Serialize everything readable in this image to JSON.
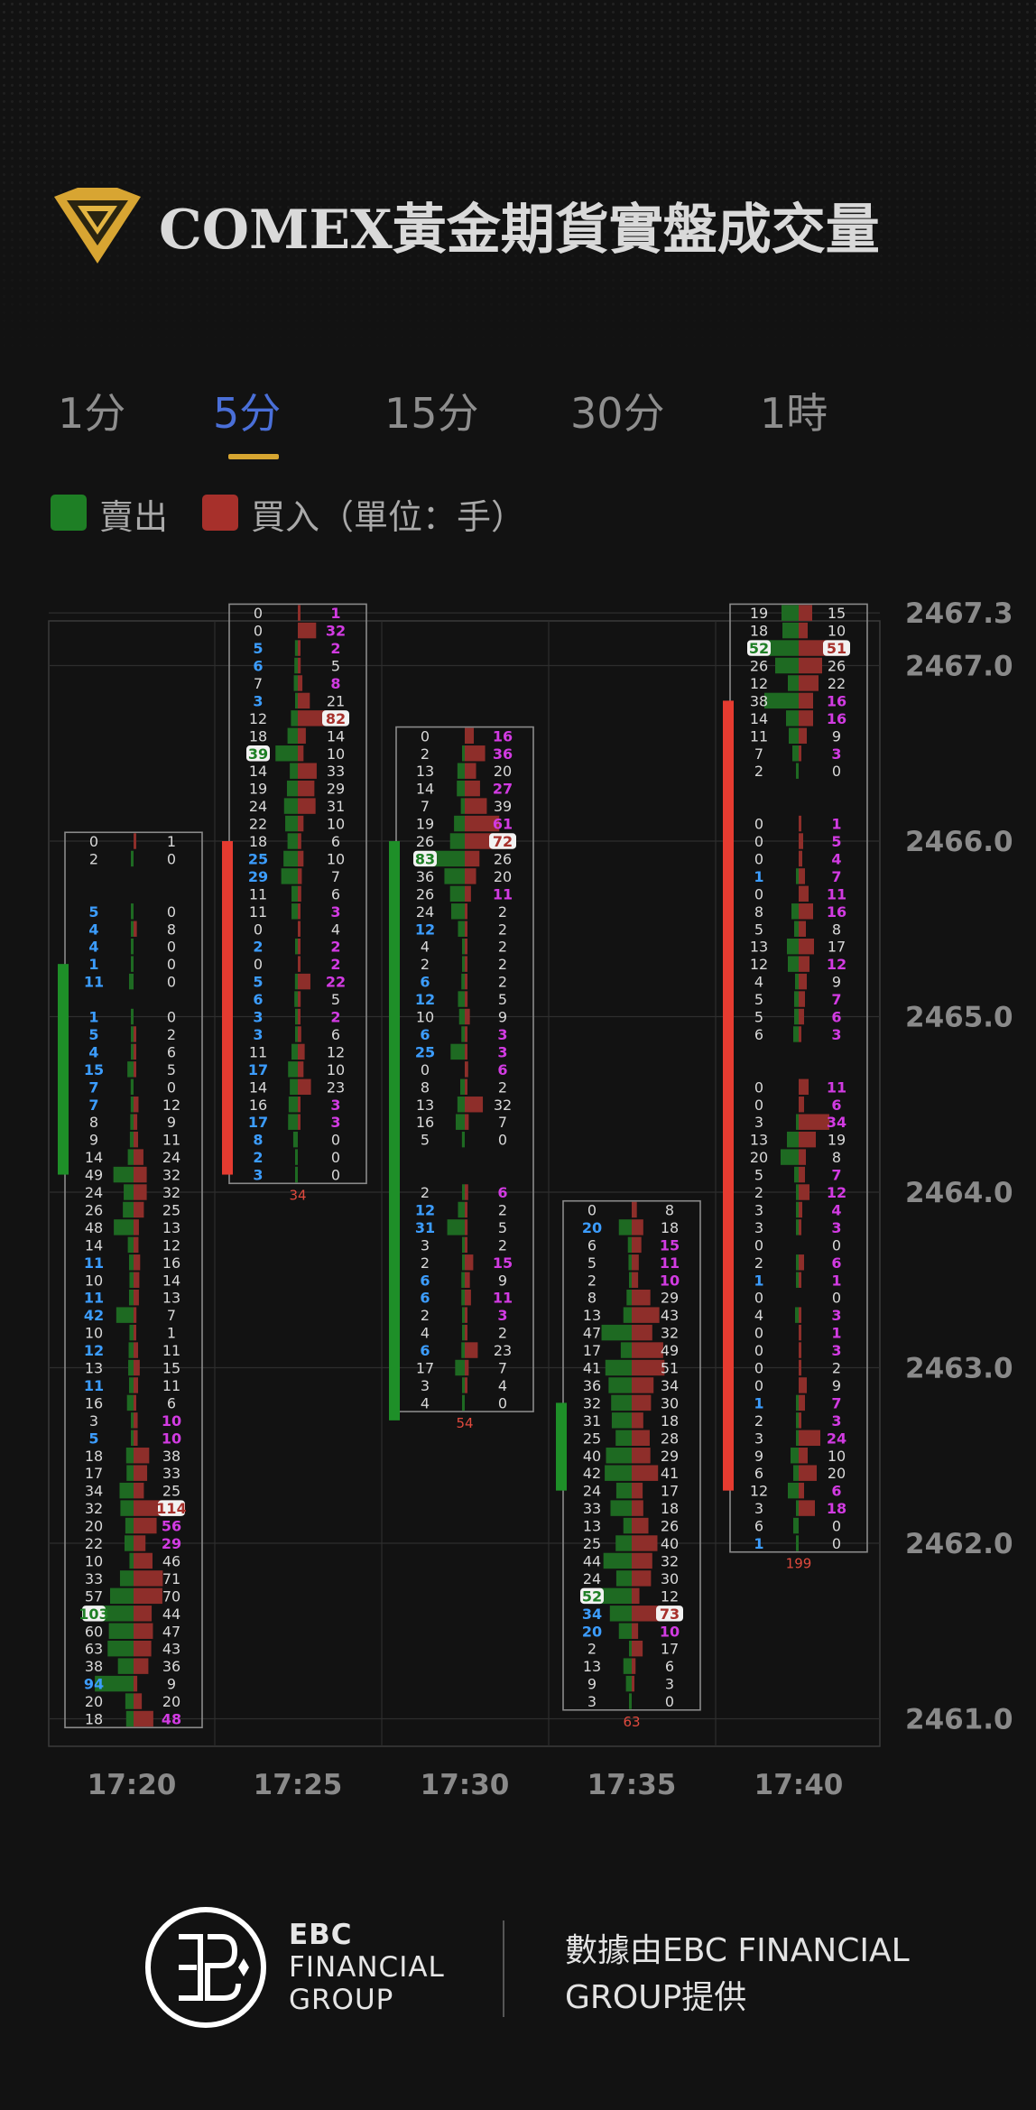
{
  "title": "COMEX黃金期貨實盤成交量",
  "tabs": [
    {
      "label": "1分",
      "active": false
    },
    {
      "label": "5分",
      "active": true
    },
    {
      "label": "15分",
      "active": false
    },
    {
      "label": "30分",
      "active": false
    },
    {
      "label": "1時",
      "active": false
    }
  ],
  "legend": {
    "sell_label": "賣出",
    "buy_label": "買入（單位：手）",
    "sell_color": "#1e7f25",
    "buy_color": "#a7302b"
  },
  "colors": {
    "candle_up": "#e53b30",
    "candle_down": "#1e8f28",
    "sell_bar": "#1e6a22",
    "buy_bar": "#8e2e2a",
    "accent_tab": "#4a6fd8",
    "tab_underline": "#d6a531"
  },
  "chart_data": {
    "type": "footprint",
    "price_axis": [
      "2467.3",
      "2467.0",
      "2466.0",
      "2465.0",
      "2464.0",
      "2463.0",
      "2462.0",
      "2461.0"
    ],
    "time_axis": [
      "17:20",
      "17:25",
      "17:30",
      "17:35",
      "17:40"
    ],
    "tick_size": 0.1,
    "candles": [
      {
        "time": "17:20",
        "direction": "down",
        "body_high": 2465.3,
        "body_low": 2464.1,
        "top_price": 2466.0,
        "total": "",
        "sell": [
          "0",
          "2",
          "",
          "",
          "5",
          "4",
          "4",
          "1",
          "11",
          "",
          "1",
          "5",
          "4",
          "15",
          "7",
          "7",
          "8",
          "9",
          "14",
          "49",
          "24",
          "26",
          "48",
          "14",
          "11",
          "10",
          "11",
          "42",
          "10",
          "12",
          "13",
          "11",
          "16",
          "3",
          "5",
          "18",
          "17",
          "34",
          "32",
          "20",
          "22",
          "10",
          "33",
          "57",
          "103",
          "60",
          "63",
          "38",
          "94",
          "20",
          "18"
        ],
        "buy": [
          "1",
          "0",
          "",
          "",
          "0",
          "8",
          "0",
          "0",
          "0",
          "",
          "0",
          "2",
          "6",
          "5",
          "0",
          "12",
          "9",
          "11",
          "24",
          "32",
          "32",
          "25",
          "13",
          "12",
          "16",
          "14",
          "13",
          "7",
          "1",
          "11",
          "15",
          "11",
          "6",
          "10",
          "10",
          "38",
          "33",
          "25",
          "114",
          "56",
          "29",
          "46",
          "71",
          "70",
          "44",
          "47",
          "43",
          "36",
          "9",
          "20",
          "48"
        ],
        "hl_sell": [
          "4",
          "1",
          "11",
          "5",
          "15",
          "7",
          "42",
          "12",
          "94"
        ],
        "hl_buy": [
          "114",
          "56",
          "29",
          "10",
          "48"
        ]
      },
      {
        "time": "17:25",
        "direction": "up",
        "body_high": 2466.0,
        "body_low": 2464.1,
        "top_price": 2467.3,
        "total": "34",
        "sell": [
          "0",
          "0",
          "5",
          "6",
          "7",
          "3",
          "12",
          "18",
          "39",
          "14",
          "19",
          "24",
          "22",
          "18",
          "25",
          "29",
          "11",
          "11",
          "0",
          "2",
          "0",
          "5",
          "6",
          "3",
          "3",
          "11",
          "17",
          "14",
          "16",
          "17",
          "8",
          "2",
          "3"
        ],
        "buy": [
          "1",
          "32",
          "2",
          "5",
          "8",
          "21",
          "82",
          "14",
          "10",
          "33",
          "29",
          "31",
          "10",
          "6",
          "10",
          "7",
          "6",
          "3",
          "4",
          "2",
          "2",
          "22",
          "5",
          "2",
          "6",
          "12",
          "10",
          "23",
          "3",
          "3",
          "0",
          "0",
          "0"
        ],
        "hl_sell": [
          "6",
          "39",
          "25",
          "29",
          "5",
          "17",
          "8",
          "2",
          "3"
        ],
        "hl_buy": [
          "1",
          "32",
          "8",
          "82",
          "3",
          "2",
          "22"
        ]
      },
      {
        "time": "17:30",
        "direction": "down",
        "body_high": 2466.0,
        "body_low": 2462.7,
        "top_price": 2466.6,
        "total": "54",
        "sell": [
          "0",
          "2",
          "13",
          "14",
          "7",
          "19",
          "26",
          "83",
          "36",
          "26",
          "24",
          "12",
          "4",
          "2",
          "6",
          "12",
          "10",
          "6",
          "25",
          "0",
          "8",
          "13",
          "16",
          "5",
          "",
          "",
          "2",
          "12",
          "31",
          "3",
          "2",
          "6",
          "6",
          "2",
          "4",
          "6",
          "17",
          "3",
          "4"
        ],
        "buy": [
          "16",
          "36",
          "20",
          "27",
          "39",
          "61",
          "72",
          "26",
          "20",
          "11",
          "2",
          "2",
          "2",
          "2",
          "2",
          "5",
          "9",
          "3",
          "3",
          "6",
          "2",
          "32",
          "7",
          "0",
          "",
          "",
          "6",
          "2",
          "5",
          "2",
          "15",
          "9",
          "11",
          "3",
          "2",
          "23",
          "7",
          "4",
          "0"
        ],
        "hl_sell": [
          "83",
          "12",
          "6",
          "12",
          "25",
          "31"
        ],
        "hl_buy": [
          "16",
          "36",
          "27",
          "61",
          "72",
          "3",
          "6",
          "15",
          "11"
        ]
      },
      {
        "time": "17:35",
        "direction": "down",
        "body_high": 2462.8,
        "body_low": 2462.3,
        "top_price": 2463.9,
        "total": "63",
        "sell": [
          "0",
          "20",
          "6",
          "5",
          "2",
          "8",
          "13",
          "47",
          "17",
          "41",
          "36",
          "32",
          "31",
          "25",
          "40",
          "42",
          "24",
          "33",
          "13",
          "25",
          "44",
          "24",
          "52",
          "34",
          "20",
          "2",
          "13",
          "9",
          "3"
        ],
        "buy": [
          "8",
          "18",
          "15",
          "11",
          "10",
          "29",
          "43",
          "32",
          "49",
          "51",
          "34",
          "30",
          "18",
          "28",
          "29",
          "41",
          "17",
          "18",
          "26",
          "40",
          "32",
          "30",
          "12",
          "73",
          "10",
          "17",
          "6",
          "3",
          "0"
        ],
        "hl_sell": [
          "20",
          "34"
        ],
        "hl_buy": [
          "15",
          "11",
          "73",
          "10"
        ]
      },
      {
        "time": "17:40",
        "direction": "up",
        "body_high": 2466.8,
        "body_low": 2462.3,
        "top_price": 2467.3,
        "total": "199",
        "sell": [
          "19",
          "18",
          "52",
          "26",
          "12",
          "38",
          "14",
          "11",
          "7",
          "2",
          "",
          "",
          "0",
          "0",
          "0",
          "1",
          "0",
          "8",
          "5",
          "13",
          "12",
          "4",
          "5",
          "5",
          "6",
          "",
          "",
          "0",
          "0",
          "3",
          "13",
          "20",
          "5",
          "2",
          "3",
          "3",
          "0",
          "2",
          "1",
          "0",
          "4",
          "0",
          "0",
          "0",
          "0",
          "1",
          "2",
          "3",
          "9",
          "6",
          "12",
          "3",
          "6",
          "1"
        ],
        "buy": [
          "15",
          "10",
          "51",
          "26",
          "22",
          "16",
          "16",
          "9",
          "3",
          "0",
          "",
          "",
          "1",
          "5",
          "4",
          "7",
          "11",
          "16",
          "8",
          "17",
          "12",
          "9",
          "7",
          "6",
          "3",
          "",
          "",
          "11",
          "6",
          "34",
          "19",
          "8",
          "7",
          "12",
          "4",
          "3",
          "0",
          "6",
          "1",
          "0",
          "3",
          "1",
          "3",
          "2",
          "9",
          "7",
          "3",
          "24",
          "10",
          "20",
          "6",
          "18",
          "0",
          "0"
        ],
        "hl_sell": [
          "52",
          "1"
        ],
        "hl_buy": [
          "51",
          "1",
          "5",
          "4",
          "7",
          "16",
          "11",
          "34",
          "7",
          "12",
          "3",
          "6",
          "24",
          "18"
        ]
      }
    ]
  },
  "footer": {
    "brand_line1": "EBC",
    "brand_line2": "FINANCIAL",
    "brand_line3": "GROUP",
    "credit_line1": "數據由EBC FINANCIAL",
    "credit_line2": "GROUP提供"
  }
}
